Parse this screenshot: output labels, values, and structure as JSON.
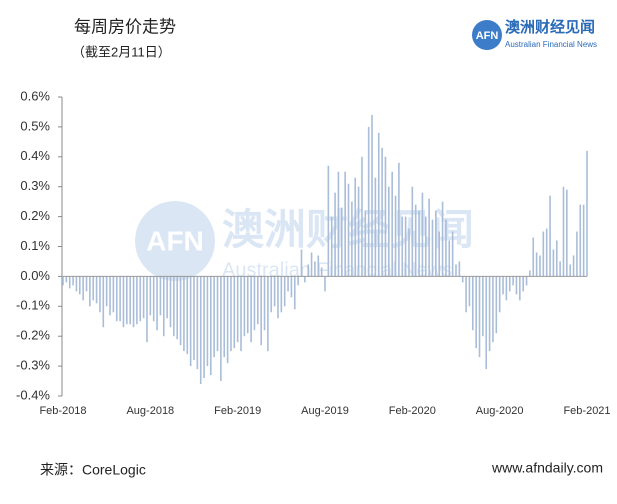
{
  "header": {
    "title": "每周房价走势",
    "subtitle": "（截至2月11日）",
    "logo_mark": "AFN",
    "logo_name": "澳洲财经见闻",
    "logo_tagline": "Australian Financial News"
  },
  "footer": {
    "source": "来源：CoreLogic",
    "website": "www.afndaily.com"
  },
  "chart_data": {
    "type": "bar",
    "color": "#a9bdd8",
    "categories": [
      "Feb-2018",
      null,
      null,
      null,
      null,
      null,
      null,
      null,
      null,
      null,
      null,
      null,
      null,
      null,
      null,
      null,
      null,
      null,
      null,
      null,
      null,
      null,
      null,
      null,
      null,
      null,
      "Aug-2018",
      null,
      null,
      null,
      null,
      null,
      null,
      null,
      null,
      null,
      null,
      null,
      null,
      null,
      null,
      null,
      null,
      null,
      null,
      null,
      null,
      null,
      null,
      null,
      null,
      null,
      "Feb-2019",
      null,
      null,
      null,
      null,
      null,
      null,
      null,
      null,
      null,
      null,
      null,
      null,
      null,
      null,
      null,
      null,
      null,
      null,
      null,
      null,
      null,
      null,
      null,
      null,
      null,
      "Aug-2019",
      null,
      null,
      null,
      null,
      null,
      null,
      null,
      null,
      null,
      null,
      null,
      null,
      null,
      null,
      null,
      null,
      null,
      null,
      null,
      null,
      null,
      null,
      null,
      null,
      null,
      "Feb-2020",
      null,
      null,
      null,
      null,
      null,
      null,
      null,
      null,
      null,
      null,
      null,
      null,
      null,
      null,
      null,
      null,
      null,
      null,
      null,
      null,
      null,
      null,
      null,
      null,
      null,
      "Aug-2020",
      null,
      null,
      null,
      null,
      null,
      null,
      null,
      null,
      null,
      null,
      null,
      null,
      null,
      null,
      null,
      null,
      null,
      null,
      null,
      null,
      null,
      null,
      null,
      null,
      null,
      "Feb-2021"
    ],
    "values": [
      -0.03,
      -0.02,
      -0.04,
      -0.03,
      -0.05,
      -0.06,
      -0.08,
      -0.05,
      -0.1,
      -0.08,
      -0.09,
      -0.12,
      -0.17,
      -0.1,
      -0.13,
      -0.12,
      -0.15,
      -0.15,
      -0.17,
      -0.16,
      -0.16,
      -0.17,
      -0.16,
      -0.15,
      -0.14,
      -0.22,
      -0.13,
      -0.15,
      -0.18,
      -0.13,
      -0.2,
      -0.14,
      -0.17,
      -0.2,
      -0.21,
      -0.23,
      -0.25,
      -0.26,
      -0.3,
      -0.28,
      -0.31,
      -0.36,
      -0.34,
      -0.3,
      -0.33,
      -0.27,
      -0.25,
      -0.35,
      -0.27,
      -0.29,
      -0.25,
      -0.24,
      -0.22,
      -0.25,
      -0.2,
      -0.19,
      -0.22,
      -0.18,
      -0.16,
      -0.23,
      -0.18,
      -0.25,
      -0.12,
      -0.1,
      -0.14,
      -0.12,
      -0.1,
      -0.05,
      -0.07,
      -0.11,
      -0.03,
      0.09,
      -0.02,
      0.04,
      0.08,
      0.05,
      0.07,
      0.03,
      -0.05,
      0.37,
      0.2,
      0.28,
      0.35,
      0.23,
      0.35,
      0.31,
      0.25,
      0.33,
      0.3,
      0.4,
      0.22,
      0.5,
      0.54,
      0.33,
      0.48,
      0.43,
      0.4,
      0.3,
      0.35,
      0.27,
      0.38,
      0.2,
      0.2,
      0.16,
      0.3,
      0.24,
      0.22,
      0.28,
      0.2,
      0.26,
      0.19,
      0.22,
      0.15,
      0.25,
      0.19,
      0.12,
      0.15,
      0.04,
      0.05,
      -0.02,
      -0.12,
      -0.1,
      -0.18,
      -0.24,
      -0.27,
      -0.2,
      -0.31,
      -0.25,
      -0.22,
      -0.19,
      -0.12,
      -0.06,
      -0.08,
      -0.05,
      -0.03,
      -0.06,
      -0.08,
      -0.05,
      -0.03,
      0.02,
      0.13,
      0.08,
      0.07,
      0.15,
      0.16,
      0.27,
      0.09,
      0.12,
      0.05,
      0.3,
      0.29,
      0.04,
      0.07,
      0.15,
      0.24,
      0.24,
      0.42
    ],
    "ylim": [
      -0.4,
      0.6
    ],
    "yticks": [
      {
        "value": -0.4,
        "label": "-0.4%"
      },
      {
        "value": -0.3,
        "label": "-0.3%"
      },
      {
        "value": -0.2,
        "label": "-0.2%"
      },
      {
        "value": -0.1,
        "label": "-0.1%"
      },
      {
        "value": 0,
        "label": "0.0%"
      },
      {
        "value": 0.1,
        "label": "0.1%"
      },
      {
        "value": 0.2,
        "label": "0.2%"
      },
      {
        "value": 0.3,
        "label": "0.3%"
      },
      {
        "value": 0.4,
        "label": "0.4%"
      },
      {
        "value": 0.5,
        "label": "0.5%"
      },
      {
        "value": 0.6,
        "label": "0.6%"
      }
    ],
    "grid": false
  }
}
